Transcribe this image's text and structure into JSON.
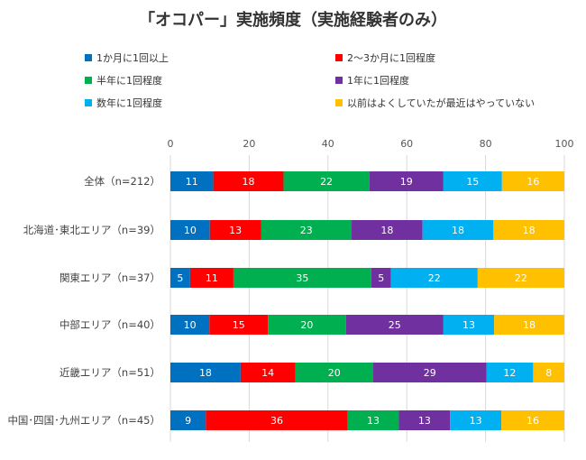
{
  "chart_data": {
    "type": "bar",
    "orientation": "horizontal-stacked-100",
    "title": "「オコパー」実施頻度（実施経験者のみ）",
    "xlim": [
      0,
      100
    ],
    "xticks": [
      0,
      20,
      40,
      60,
      80,
      100
    ],
    "grid": true,
    "legend_position": "top",
    "categories": [
      "全体（n=212）",
      "北海道･東北エリア（n=39）",
      "関東エリア（n=37）",
      "中部エリア（n=40）",
      "近畿エリア（n=51）",
      "中国･四国･九州エリア（n=45）"
    ],
    "series": [
      {
        "name": "1か月に1回以上",
        "color": "#0070C0",
        "values": [
          11,
          10,
          5,
          10,
          18,
          9
        ]
      },
      {
        "name": "2～3か月に1回程度",
        "color": "#FF0000",
        "values": [
          18,
          13,
          11,
          15,
          14,
          36
        ]
      },
      {
        "name": "半年に1回程度",
        "color": "#00B050",
        "values": [
          22,
          23,
          35,
          20,
          20,
          13
        ]
      },
      {
        "name": "1年に1回程度",
        "color": "#7030A0",
        "values": [
          19,
          18,
          5,
          25,
          29,
          13
        ]
      },
      {
        "name": "数年に1回程度",
        "color": "#00B0F0",
        "values": [
          15,
          18,
          22,
          13,
          12,
          13
        ]
      },
      {
        "name": "以前はよくしていたが最近はやっていない",
        "color": "#FFC000",
        "values": [
          16,
          18,
          22,
          18,
          8,
          16
        ]
      }
    ]
  }
}
